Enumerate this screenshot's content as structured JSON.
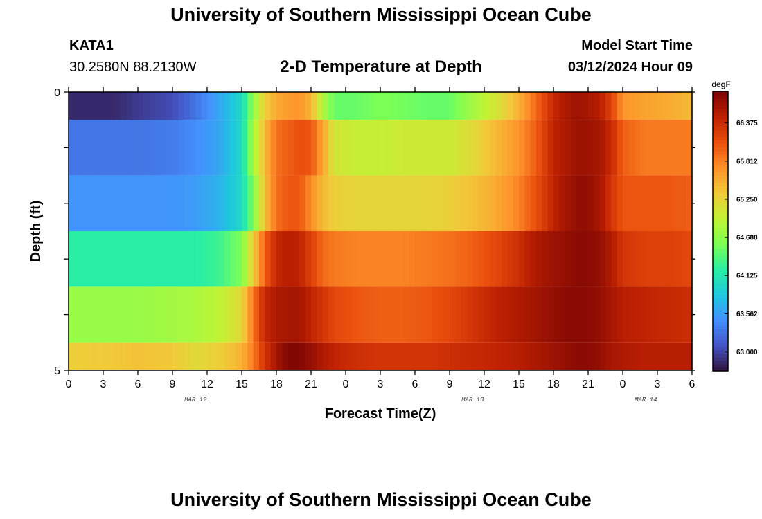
{
  "header": {
    "title": "University of Southern Mississippi Ocean Cube",
    "station": "KATA1",
    "coordinates": "30.2580N  88.2130W",
    "chart_title": "2-D Temperature at Depth",
    "model_start_label": "Model Start Time",
    "model_start_value": "03/12/2024 Hour 09"
  },
  "footer": {
    "title": "University of Southern Mississippi Ocean Cube"
  },
  "chart_data": {
    "type": "heatmap",
    "title": "2-D Temperature at Depth",
    "xlabel": "Forecast Time(Z)",
    "ylabel": "Depth (ft)",
    "x_tick_labels": [
      "0",
      "3",
      "6",
      "9",
      "12",
      "15",
      "18",
      "21",
      "0",
      "3",
      "6",
      "9",
      "12",
      "15",
      "18",
      "21",
      "0",
      "3",
      "6"
    ],
    "x_range_hours": [
      0,
      54
    ],
    "y_tick_labels": [
      "0",
      "5"
    ],
    "y_range": [
      0,
      5
    ],
    "date_labels": [
      {
        "label": "MAR 12",
        "hour": 11
      },
      {
        "label": "MAR 13",
        "hour": 35
      },
      {
        "label": "MAR 14",
        "hour": 50
      }
    ],
    "colorbar": {
      "unit": "degF",
      "min": 62.72,
      "max": 66.84,
      "tick_labels": [
        "66.375",
        "65.812",
        "65.250",
        "64.688",
        "64.125",
        "63.562",
        "63.000"
      ],
      "ticks": [
        66.375,
        65.812,
        65.25,
        64.688,
        64.125,
        63.562,
        63.0
      ],
      "colors": [
        "#30123b",
        "#4454c4",
        "#4490fe",
        "#1fc8de",
        "#29efa2",
        "#7dff56",
        "#c1f334",
        "#f1ca3a",
        "#fe922a",
        "#ea4f0d",
        "#be2102",
        "#7a0403"
      ]
    },
    "depth_layers": [
      "0-0.5",
      "0.5-1.5",
      "1.5-2.5",
      "2.5-3.5",
      "3.5-4.5",
      "4.5-5"
    ],
    "time_knots_hours": [
      0,
      4,
      6,
      9,
      11,
      13,
      15,
      16,
      17,
      18,
      19,
      20,
      21,
      22,
      23,
      25,
      27,
      29,
      31,
      33,
      35,
      37,
      39,
      40,
      41,
      42,
      43,
      44,
      45,
      46,
      47,
      48,
      50,
      52,
      54
    ],
    "temperature_degF": [
      [
        62.85,
        62.85,
        62.95,
        63.05,
        63.3,
        63.6,
        64.0,
        64.7,
        65.3,
        65.55,
        65.65,
        65.7,
        65.5,
        64.9,
        64.5,
        64.5,
        64.6,
        64.55,
        64.5,
        64.5,
        64.8,
        65.1,
        65.5,
        65.8,
        66.1,
        66.4,
        66.55,
        66.65,
        66.6,
        66.5,
        66.2,
        65.7,
        65.6,
        65.55,
        65.45
      ],
      [
        63.3,
        63.3,
        63.3,
        63.35,
        63.45,
        63.6,
        64.0,
        64.8,
        65.45,
        65.9,
        66.0,
        66.1,
        66.05,
        65.6,
        65.1,
        65.0,
        65.0,
        65.05,
        65.05,
        65.05,
        65.2,
        65.45,
        65.7,
        65.9,
        66.15,
        66.45,
        66.55,
        66.65,
        66.65,
        66.6,
        66.4,
        66.0,
        65.85,
        65.85,
        65.85
      ],
      [
        63.5,
        63.5,
        63.5,
        63.5,
        63.55,
        63.7,
        64.0,
        64.6,
        65.4,
        65.9,
        66.05,
        66.05,
        65.75,
        65.45,
        65.3,
        65.25,
        65.25,
        65.25,
        65.25,
        65.3,
        65.4,
        65.55,
        65.8,
        66.0,
        66.2,
        66.45,
        66.6,
        66.7,
        66.7,
        66.6,
        66.3,
        66.05,
        66.05,
        66.05,
        66.0
      ],
      [
        64.2,
        64.2,
        64.2,
        64.2,
        64.2,
        64.3,
        64.6,
        65.3,
        66.0,
        66.4,
        66.5,
        66.45,
        66.2,
        65.95,
        65.85,
        65.8,
        65.8,
        65.8,
        65.85,
        65.9,
        66.0,
        66.15,
        66.35,
        66.5,
        66.6,
        66.65,
        66.7,
        66.75,
        66.75,
        66.7,
        66.55,
        66.3,
        66.2,
        66.2,
        66.15
      ],
      [
        64.75,
        64.75,
        64.75,
        64.8,
        64.85,
        64.95,
        65.2,
        65.9,
        66.4,
        66.55,
        66.6,
        66.6,
        66.45,
        66.3,
        66.15,
        66.05,
        66.0,
        66.0,
        66.05,
        66.15,
        66.3,
        66.45,
        66.55,
        66.6,
        66.65,
        66.7,
        66.75,
        66.75,
        66.75,
        66.7,
        66.6,
        66.5,
        66.45,
        66.4,
        66.35
      ],
      [
        65.3,
        65.35,
        65.4,
        65.35,
        65.2,
        65.3,
        65.5,
        65.85,
        66.3,
        66.6,
        66.8,
        66.8,
        66.7,
        66.55,
        66.45,
        66.35,
        66.3,
        66.3,
        66.3,
        66.35,
        66.4,
        66.45,
        66.5,
        66.55,
        66.6,
        66.65,
        66.7,
        66.75,
        66.75,
        66.7,
        66.6,
        66.55,
        66.5,
        66.5,
        66.5
      ]
    ]
  }
}
